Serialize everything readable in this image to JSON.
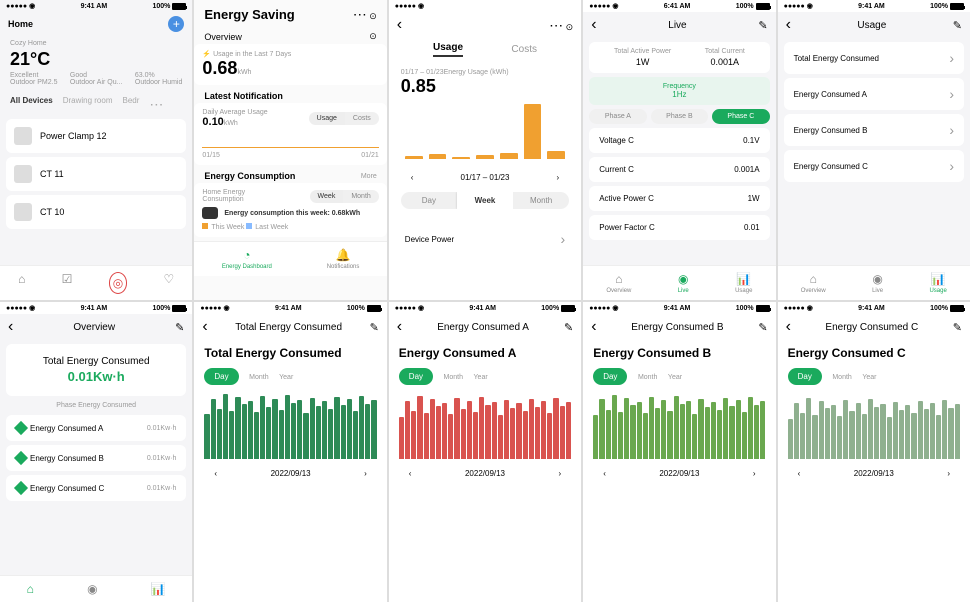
{
  "statusbar": {
    "time": "9:41 AM",
    "time2": "6:41 AM",
    "pct": "100%"
  },
  "s1": {
    "home": "Home",
    "temp": "21°C",
    "excellent": "Excellent",
    "good": "Good",
    "humid": "63.0%",
    "pm": "Outdoor PM2.5",
    "aq": "Outdoor Air Qu...",
    "oh": "Outdoor Humid",
    "cozy": "Cozy Home",
    "tabs": [
      "All Devices",
      "Drawing room",
      "Bedr"
    ],
    "devices": [
      "Power Clamp 12",
      "CT 11",
      "CT 10"
    ]
  },
  "s2": {
    "title": "Energy Saving",
    "overview": "Overview",
    "last7": "Usage in the Last 7 Days",
    "kwh": "0.68",
    "unit": "kWh",
    "notif": "Latest Notification",
    "daily": "Daily Average Usage",
    "dval": "0.10",
    "usage": "Usage",
    "costs": "Costs",
    "d1": "01/15",
    "d2": "01/21",
    "cons": "Energy Consumption",
    "more": "More",
    "home_cons": "Home Energy Consumption",
    "week": "Week",
    "month": "Month",
    "msg": "Energy consumption this week: 0.68kWh",
    "tw": "This Week",
    "lw": "Last Week",
    "dash": "Energy Dashboard",
    "notifs": "Notifications"
  },
  "s3": {
    "usage": "Usage",
    "costs": "Costs",
    "range": "01/17 – 01/23Energy Usage   (kWh)",
    "val": "0.85",
    "nav": "01/17 – 01/23",
    "day": "Day",
    "week": "Week",
    "month": "Month",
    "dp": "Device Power",
    "bars": [
      3,
      5,
      2,
      4,
      6,
      55,
      8
    ],
    "color": "#f0a030"
  },
  "s4": {
    "title": "Live",
    "tap": "Total Active Power",
    "tapv": "1W",
    "tc": "Total Current",
    "tcv": "0.001A",
    "freq": "Frequency",
    "freqv": "1Hz",
    "pa": "Phase A",
    "pb": "Phase B",
    "pc": "Phase C",
    "rows": [
      [
        "Voltage C",
        "0.1V"
      ],
      [
        "Current C",
        "0.001A"
      ],
      [
        "Active Power C",
        "1W"
      ],
      [
        "Power Factor C",
        "0.01"
      ]
    ],
    "tabs": [
      "Overview",
      "Live",
      "Usage"
    ]
  },
  "s5": {
    "title": "Usage",
    "rows": [
      "Total Energy Consumed",
      "Energy Consumed A",
      "Energy Consumed B",
      "Energy Consumed C"
    ],
    "tabs": [
      "Overview",
      "Live",
      "Usage"
    ]
  },
  "s6": {
    "title": "Overview",
    "tec": "Total Energy Consumed",
    "val": "0.01Kw·h",
    "phase": "Phase Energy Consumed",
    "rows": [
      [
        "Energy Consumed A",
        "0.01Kw·h"
      ],
      [
        "Energy Consumed B",
        "0.01Kw·h"
      ],
      [
        "Energy Consumed C",
        "0.01Kw·h"
      ]
    ]
  },
  "charts": {
    "day": "Day",
    "month": "Month",
    "year": "Year",
    "date": "2022/09/13",
    "c1": {
      "nav": "Total Energy Consumed",
      "title": "Total Energy Consumed",
      "color": "#2e8b57",
      "bars": [
        45,
        60,
        50,
        65,
        48,
        62,
        55,
        58,
        47,
        63,
        52,
        60,
        49,
        64,
        56,
        59,
        46,
        61,
        53,
        58,
        50,
        62,
        54,
        60,
        48,
        63,
        55,
        59
      ]
    },
    "c2": {
      "nav": "Energy Consumed A",
      "title": "Energy Consumed A",
      "color": "#d9534f",
      "bars": [
        42,
        58,
        48,
        63,
        46,
        60,
        53,
        56,
        45,
        61,
        50,
        58,
        47,
        62,
        54,
        57,
        44,
        59,
        51,
        56,
        48,
        60,
        52,
        58,
        46,
        61,
        53,
        57
      ]
    },
    "c3": {
      "nav": "Energy Consumed B",
      "title": "Energy Consumed B",
      "color": "#6aa84f",
      "bars": [
        44,
        60,
        49,
        64,
        47,
        61,
        54,
        57,
        46,
        62,
        51,
        59,
        48,
        63,
        55,
        58,
        45,
        60,
        52,
        57,
        49,
        61,
        53,
        59,
        47,
        62,
        54,
        58
      ]
    },
    "c4": {
      "nav": "Energy Consumed C",
      "title": "Energy Consumed C",
      "color": "#8fb08f",
      "bars": [
        40,
        56,
        46,
        61,
        44,
        58,
        51,
        54,
        43,
        59,
        48,
        56,
        45,
        60,
        52,
        55,
        42,
        57,
        49,
        54,
        46,
        58,
        50,
        56,
        44,
        59,
        51,
        55
      ]
    }
  }
}
